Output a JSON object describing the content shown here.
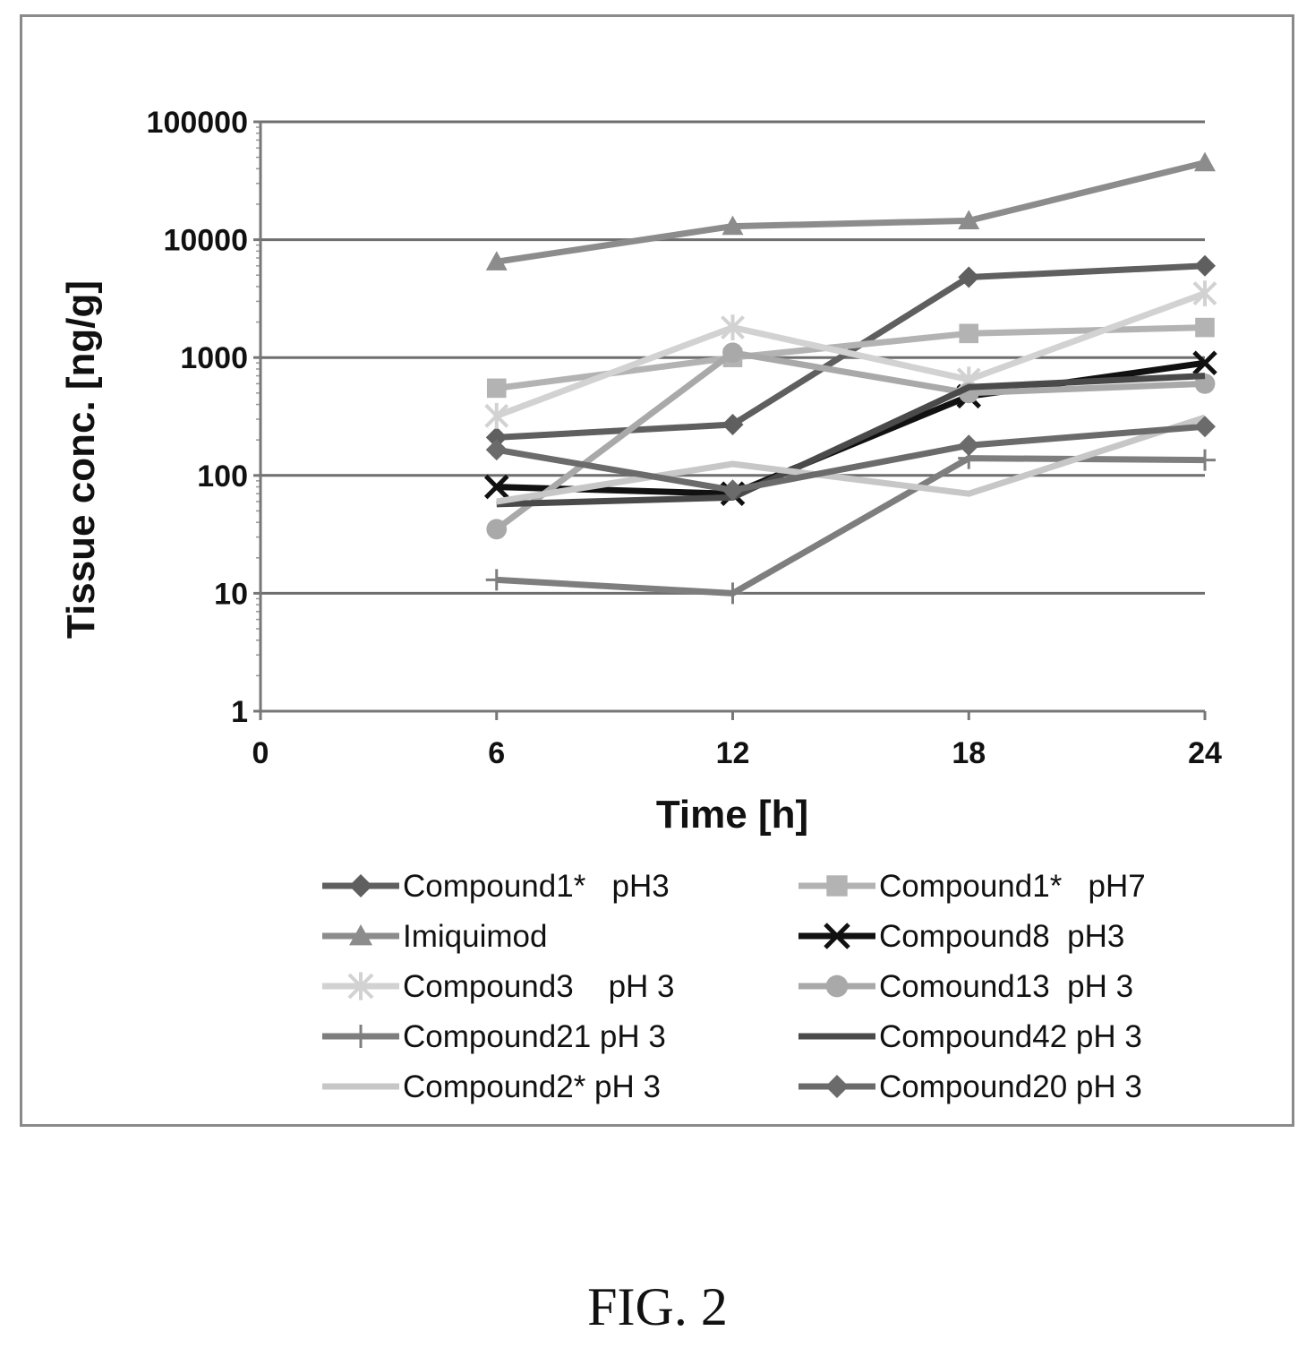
{
  "caption": "FIG. 2",
  "chart_data": {
    "type": "line",
    "xlabel": "Time [h]",
    "ylabel": "Tissue conc. [ng/g]",
    "x_ticks": [
      "0",
      "6",
      "12",
      "18",
      "24"
    ],
    "y_ticks": [
      "1",
      "10",
      "100",
      "1000",
      "10000",
      "100000"
    ],
    "xlim": [
      0,
      24
    ],
    "ylim": [
      1,
      100000
    ],
    "y_scale": "log",
    "grid": "horizontal major gridlines",
    "legend_position": "bottom, two columns",
    "x": [
      6,
      12,
      18,
      24
    ],
    "series": [
      {
        "name": "Compound1*   pH3",
        "color": "#5f5f5f",
        "marker": "diamond",
        "values": [
          210,
          270,
          4800,
          6000
        ]
      },
      {
        "name": "Compound1*   pH7",
        "color": "#b3b3b3",
        "marker": "square",
        "values": [
          550,
          1000,
          1600,
          1800
        ]
      },
      {
        "name": "Imiquimod",
        "color": "#8c8c8c",
        "marker": "triangle",
        "values": [
          6500,
          13000,
          14500,
          45000
        ]
      },
      {
        "name": "Compound8  pH3",
        "color": "#111111",
        "marker": "x",
        "values": [
          80,
          70,
          470,
          900
        ]
      },
      {
        "name": "Compound3    pH 3",
        "color": "#d2d2d2",
        "marker": "star",
        "values": [
          320,
          1800,
          650,
          3500
        ]
      },
      {
        "name": "Comound13  pH 3",
        "color": "#a9a9a9",
        "marker": "circle",
        "values": [
          35,
          1100,
          500,
          600
        ]
      },
      {
        "name": "Compound21 pH 3",
        "color": "#7e7e7e",
        "marker": "plus",
        "values": [
          13,
          10,
          140,
          135
        ]
      },
      {
        "name": "Compound42 pH 3",
        "color": "#4a4a4a",
        "marker": "none",
        "values": [
          57,
          65,
          560,
          700
        ]
      },
      {
        "name": "Compound2* pH 3",
        "color": "#c7c7c7",
        "marker": "none",
        "values": [
          60,
          125,
          70,
          310
        ]
      },
      {
        "name": "Compound20 pH 3",
        "color": "#6b6b6b",
        "marker": "diamond",
        "values": [
          165,
          75,
          180,
          260
        ]
      }
    ]
  }
}
